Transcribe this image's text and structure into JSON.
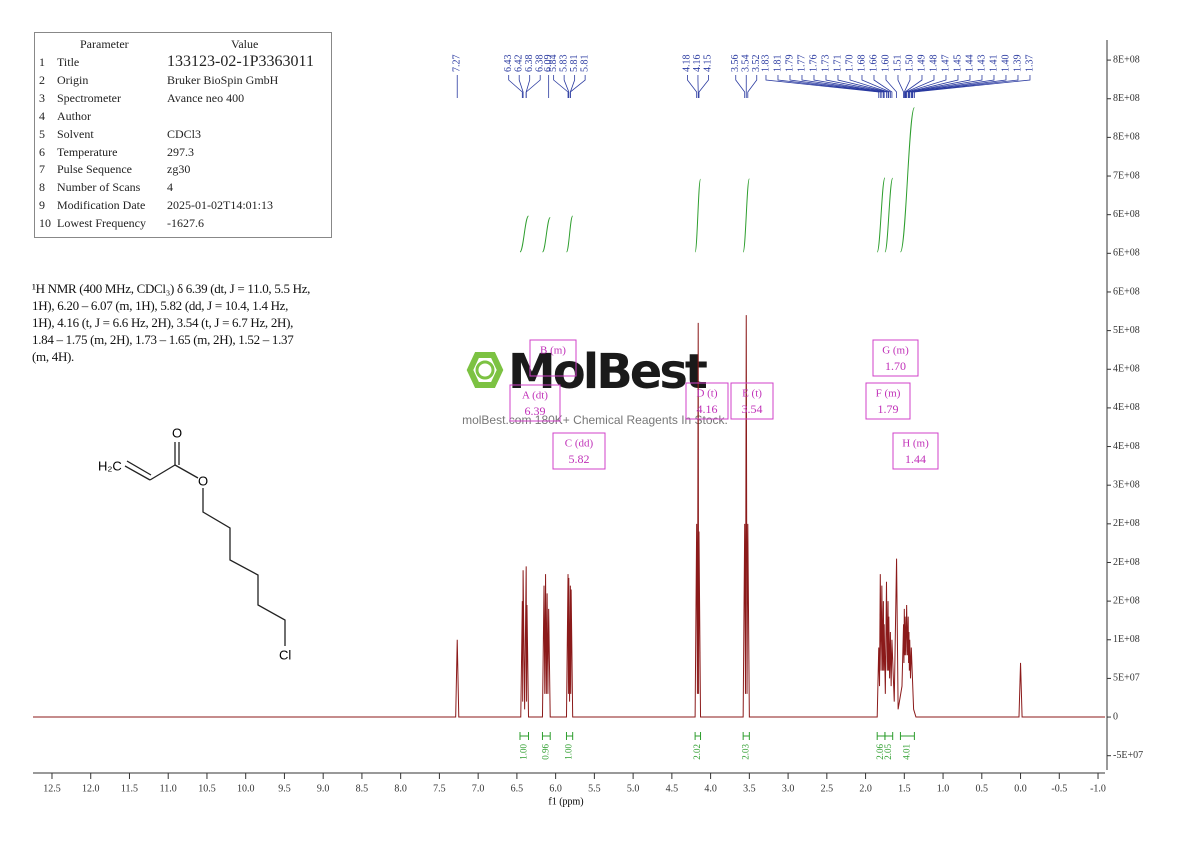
{
  "table": {
    "headers": [
      "Parameter",
      "Value"
    ],
    "rows": [
      [
        "1",
        "Title",
        "133123-02-1P3363011"
      ],
      [
        "2",
        "Origin",
        "Bruker BioSpin GmbH"
      ],
      [
        "3",
        "Spectrometer",
        "Avance neo 400"
      ],
      [
        "4",
        "Author"
      ],
      [
        "5",
        "Solvent",
        "CDCl3"
      ],
      [
        "6",
        "Temperature",
        "297.3"
      ],
      [
        "7",
        "Pulse Sequence",
        "zg30"
      ],
      [
        "8",
        "Number of Scans",
        "4"
      ],
      [
        "9",
        "Modification Date",
        "2025-01-02T14:01:13"
      ],
      [
        "10",
        "Lowest Frequency",
        "-1627.6"
      ]
    ]
  },
  "description": "¹H NMR (400 MHz, CDCl₃) δ 6.39 (dt, J = 11.0, 5.5 Hz, 1H), 6.20 – 6.07 (m, 1H), 5.82 (dd, J = 10.4, 1.4 Hz, 1H), 4.16 (t, J = 6.6 Hz, 2H), 3.54 (t, J = 6.7 Hz, 2H), 1.84 – 1.75 (m, 2H), 1.73 – 1.65 (m, 2H), 1.52 – 1.37 (m, 4H).",
  "structure": {
    "labels": [
      "H₂C",
      "O",
      "O",
      "Cl"
    ]
  },
  "watermark": {
    "logo": "MolBest",
    "tagline": "molBest.com 180K+ Chemical Reagents In Stock."
  },
  "chart_data": {
    "type": "line",
    "xlabel": "f1 (ppm)",
    "xlim": [
      12.745,
      -1.09
    ],
    "xticks": [
      12.5,
      {
        "value": 12,
        "label": "12.0"
      },
      11.5,
      {
        "value": 11,
        "label": "11.0"
      },
      10.5,
      {
        "value": 10,
        "label": "10.0"
      },
      9.5,
      {
        "value": 9,
        "label": "9.0"
      },
      8.5,
      {
        "value": 8,
        "label": "8.0"
      },
      7.5,
      {
        "value": 7,
        "label": "7.0"
      },
      6.5,
      {
        "value": 6,
        "label": "6.0"
      },
      5.5,
      {
        "value": 5,
        "label": "5.0"
      },
      4.5,
      {
        "value": 4,
        "label": "4.0"
      },
      3.5,
      {
        "value": 3,
        "label": "3.0"
      },
      2.5,
      {
        "value": 2,
        "label": "2.0"
      },
      1.5,
      {
        "value": 1,
        "label": "1.0"
      },
      0.5,
      {
        "value": 0,
        "label": "0.0"
      },
      -0.5,
      {
        "value": -1,
        "label": "-1.0"
      }
    ],
    "ylim": [
      -68500000.0,
      876000000.0
    ],
    "yaxis_position": "right",
    "yticks": [
      {
        "value": 850000000.0,
        "label": "8E+08"
      },
      {
        "value": 800000000.0,
        "label": "8E+08"
      },
      {
        "value": 750000000.0,
        "label": "8E+08"
      },
      {
        "value": 700000000.0,
        "label": "7E+08"
      },
      {
        "value": 650000000.0,
        "label": "6E+08"
      },
      {
        "value": 600000000.0,
        "label": "6E+08"
      },
      {
        "value": 550000000.0,
        "label": "6E+08"
      },
      {
        "value": 500000000.0,
        "label": "5E+08"
      },
      {
        "value": 450000000.0,
        "label": "4E+08"
      },
      {
        "value": 400000000.0,
        "label": "4E+08"
      },
      {
        "value": 350000000.0,
        "label": "4E+08"
      },
      {
        "value": 300000000.0,
        "label": "3E+08"
      },
      {
        "value": 250000000.0,
        "label": "2E+08"
      },
      {
        "value": 200000000.0,
        "label": "2E+08"
      },
      {
        "value": 150000000.0,
        "label": "2E+08"
      },
      {
        "value": 100000000.0,
        "label": "1E+08"
      },
      {
        "value": 50000000.0,
        "label": "5E+07"
      },
      0,
      {
        "value": -50000000.0,
        "label": "-5E+07"
      }
    ],
    "x": [
      12.745,
      7.29,
      7.27,
      7.25,
      6.45,
      6.43,
      6.425,
      6.42,
      6.4,
      6.38,
      6.375,
      6.37,
      6.35,
      6.17,
      6.15,
      6.14,
      6.13,
      6.12,
      6.11,
      6.1,
      6.09,
      6.07,
      5.86,
      5.84,
      5.835,
      5.83,
      5.82,
      5.81,
      5.805,
      5.8,
      5.78,
      4.2,
      4.18,
      4.17,
      4.16,
      4.155,
      4.15,
      4.13,
      3.58,
      3.56,
      3.55,
      3.54,
      3.53,
      3.52,
      3.5,
      1.85,
      1.83,
      1.82,
      1.81,
      1.8,
      1.79,
      1.78,
      1.77,
      1.765,
      1.76,
      1.745,
      1.73,
      1.72,
      1.71,
      1.705,
      1.7,
      1.69,
      1.68,
      1.67,
      1.66,
      1.63,
      1.6,
      1.58,
      1.53,
      1.51,
      1.505,
      1.5,
      1.495,
      1.49,
      1.48,
      1.47,
      1.46,
      1.45,
      1.445,
      1.44,
      1.435,
      1.43,
      1.42,
      1.41,
      1.38,
      1.35,
      0.02,
      0.0,
      -0.02,
      -1.09
    ],
    "series": [
      {
        "color": "#8b1a1a",
        "values": [
          0,
          0,
          100000000.0,
          0,
          0,
          150000000.0,
          20000000.0,
          190000000.0,
          10000000.0,
          195000000.0,
          20000000.0,
          145000000.0,
          0,
          0,
          170000000.0,
          30000000.0,
          185000000.0,
          30000000.0,
          160000000.0,
          30000000.0,
          140000000.0,
          0,
          0,
          185000000.0,
          30000000.0,
          180000000.0,
          20000000.0,
          170000000.0,
          30000000.0,
          165000000.0,
          0,
          0,
          250000000.0,
          30000000.0,
          510000000.0,
          30000000.0,
          240000000.0,
          0,
          0,
          250000000.0,
          30000000.0,
          520000000.0,
          30000000.0,
          250000000.0,
          0,
          0,
          90000000.0,
          40000000.0,
          185000000.0,
          60000000.0,
          170000000.0,
          60000000.0,
          150000000.0,
          60000000.0,
          120000000.0,
          30000000.0,
          175000000.0,
          60000000.0,
          150000000.0,
          60000000.0,
          130000000.0,
          50000000.0,
          110000000.0,
          40000000.0,
          100000000.0,
          20000000.0,
          205000000.0,
          10000000.0,
          40000000.0,
          120000000.0,
          70000000.0,
          140000000.0,
          80000000.0,
          130000000.0,
          80000000.0,
          145000000.0,
          80000000.0,
          130000000.0,
          70000000.0,
          110000000.0,
          60000000.0,
          100000000.0,
          50000000.0,
          90000000.0,
          10000000.0,
          0,
          0,
          70000000.0,
          0,
          0
        ]
      }
    ],
    "peak_labels": [
      "7.27",
      "6.43",
      "6.42",
      "6.38",
      "6.38",
      "6.09",
      "5.84",
      "5.83",
      "5.81",
      "5.81",
      "4.18",
      "4.16",
      "4.15",
      "3.56",
      "3.54",
      "3.52",
      "1.83",
      "1.81",
      "1.79",
      "1.77",
      "1.76",
      "1.73",
      "1.71",
      "1.70",
      "1.68",
      "1.66",
      "1.60",
      "1.51",
      "1.50",
      "1.49",
      "1.48",
      "1.47",
      "1.45",
      "1.44",
      "1.43",
      "1.41",
      "1.40",
      "1.39",
      "1.37"
    ],
    "integrals": {
      "ranges": [
        [
          6.46,
          6.35
        ],
        [
          6.17,
          6.07
        ],
        [
          5.86,
          5.78
        ],
        [
          4.2,
          4.13
        ],
        [
          3.58,
          3.5
        ],
        [
          1.85,
          1.75
        ],
        [
          1.75,
          1.65
        ],
        [
          1.55,
          1.37
        ]
      ],
      "values": [
        1,
        0.96,
        1,
        2.02,
        2.03,
        2.06,
        2.05,
        4.01
      ],
      "value_labels": [
        "1.00",
        "0.96",
        "1.00",
        "2.02",
        "2.03",
        "2.06",
        "2.05",
        "4.01"
      ]
    },
    "multiplets": [
      {
        "label": "A (dt)",
        "shift": "6.39"
      },
      {
        "label": "B (m)"
      },
      {
        "label": "C (dd)",
        "shift": "5.82"
      },
      {
        "label": "D (t)",
        "shift": "4.16"
      },
      {
        "label": "E (t)",
        "shift": "3.54"
      },
      {
        "label": "F (m)",
        "shift": "1.79"
      },
      {
        "label": "G (m)",
        "shift": "1.70"
      },
      {
        "label": "H (m)",
        "shift": "1.44"
      }
    ]
  }
}
